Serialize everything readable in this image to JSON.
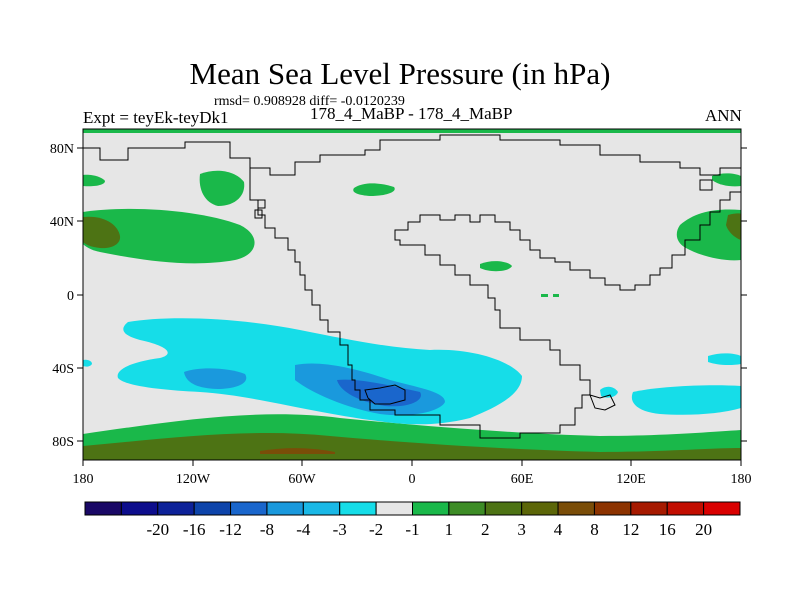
{
  "title": "Mean Sea Level Pressure (in hPa)",
  "stats": "rmsd= 0.908928 diff= -0.0120239",
  "expt": "Expt = teyEk-teyDk1",
  "subtitle": "178_4_MaBP - 178_4_MaBP",
  "season": "ANN",
  "lat_labels": [
    "80N",
    "40N",
    "0",
    "40S",
    "80S"
  ],
  "lon_labels": [
    "180",
    "120W",
    "60W",
    "0",
    "60E",
    "120E",
    "180"
  ],
  "colorbar": {
    "colors": [
      "#1a0866",
      "#0d0d8c",
      "#0d2299",
      "#0d44aa",
      "#1a66cc",
      "#1a99dd",
      "#1ab8e6",
      "#16dde8",
      "#e6e6e6",
      "#1ab84a",
      "#3d8c26",
      "#4d7314",
      "#5c6608",
      "#7a4d08",
      "#8c3300",
      "#a61a00",
      "#c20d00",
      "#d90000"
    ],
    "labels": [
      "-20",
      "-16",
      "-12",
      "-8",
      "-4",
      "-3",
      "-2",
      "-1",
      "1",
      "2",
      "3",
      "4",
      "8",
      "12",
      "16",
      "20"
    ]
  },
  "field_colors": {
    "neutral": "#e6e6e6",
    "pos1": "#1ab84a",
    "pos2": "#4d7314",
    "pos3": "#7a4d08",
    "neg1": "#16dde8",
    "neg2": "#1ab8e6",
    "neg3": "#1a99dd",
    "coast": "#000000",
    "frame": "#000000"
  }
}
